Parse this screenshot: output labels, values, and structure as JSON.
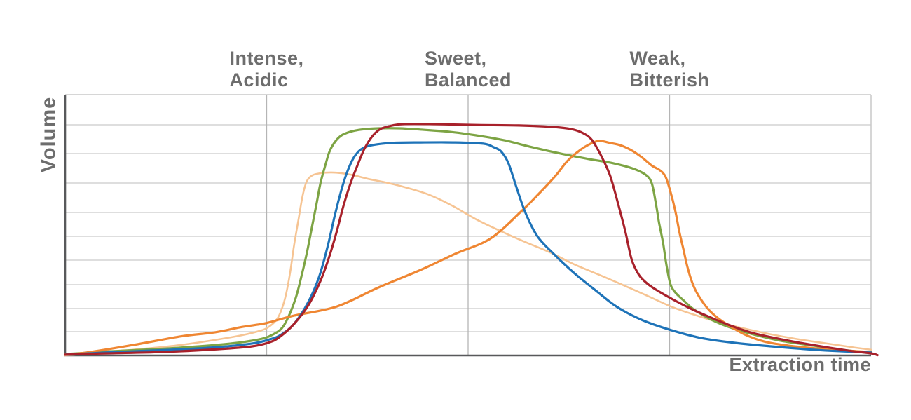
{
  "chart_data": {
    "type": "line",
    "title": "",
    "ylabel": "Volume",
    "xlabel": "Extraction time",
    "grid": "on",
    "legend": "none",
    "axis_ranges": {
      "x": [
        0,
        100
      ],
      "y": [
        0,
        100
      ]
    },
    "axis_note": "no numeric ticks shown; x = % of extraction time axis, y = % of volume axis height",
    "annotations": [
      {
        "line1": "Intense,",
        "line2": "Acidic",
        "x_percent": 25
      },
      {
        "line1": "Sweet,",
        "line2": "Balanced",
        "x_percent": 50
      },
      {
        "line1": "Weak,",
        "line2": "Bitterish",
        "x_percent": 75
      }
    ],
    "series": [
      {
        "name": "light-peach-curve",
        "color": "#f6c493",
        "width": 2.6,
        "points": [
          [
            0,
            0
          ],
          [
            5,
            1.3
          ],
          [
            13.7,
            3.8
          ],
          [
            20.6,
            7
          ],
          [
            24.1,
            9.4
          ],
          [
            25.4,
            11.3
          ],
          [
            26.3,
            14
          ],
          [
            26.9,
            18
          ],
          [
            27.4,
            23.4
          ],
          [
            27.9,
            31.5
          ],
          [
            28.4,
            42.2
          ],
          [
            29,
            53
          ],
          [
            29.5,
            61.8
          ],
          [
            30,
            66.9
          ],
          [
            30.7,
            69.1
          ],
          [
            31.7,
            69.9
          ],
          [
            33,
            70.2
          ],
          [
            34.3,
            69.9
          ],
          [
            35.8,
            69.1
          ],
          [
            37.6,
            67.7
          ],
          [
            39.7,
            66.4
          ],
          [
            42.2,
            64.5
          ],
          [
            45,
            61.8
          ],
          [
            48,
            57.5
          ],
          [
            51,
            52.2
          ],
          [
            54.1,
            47.6
          ],
          [
            57.1,
            43.5
          ],
          [
            60.2,
            39.5
          ],
          [
            63.2,
            34.9
          ],
          [
            66.3,
            30.9
          ],
          [
            69.3,
            26.9
          ],
          [
            72.3,
            22.8
          ],
          [
            75.4,
            18.5
          ],
          [
            78.4,
            15.3
          ],
          [
            81.5,
            12.4
          ],
          [
            84.5,
            10.2
          ],
          [
            87.6,
            8.1
          ],
          [
            91,
            6.2
          ],
          [
            94.5,
            4.6
          ],
          [
            97.6,
            3.2
          ],
          [
            100,
            2.2
          ]
        ]
      },
      {
        "name": "green-curve",
        "color": "#7da444",
        "width": 3.2,
        "points": [
          [
            0,
            0.5
          ],
          [
            5.8,
            1.6
          ],
          [
            12.8,
            2.7
          ],
          [
            19.7,
            4.3
          ],
          [
            24.1,
            6.2
          ],
          [
            25.8,
            8.1
          ],
          [
            26.9,
            10.5
          ],
          [
            27.7,
            14.8
          ],
          [
            28.6,
            22
          ],
          [
            29.3,
            30.1
          ],
          [
            30,
            39.5
          ],
          [
            30.6,
            48.9
          ],
          [
            31.2,
            58.3
          ],
          [
            31.7,
            66.4
          ],
          [
            32.3,
            73.1
          ],
          [
            32.8,
            78.2
          ],
          [
            33.5,
            82
          ],
          [
            34.3,
            84.4
          ],
          [
            35.4,
            85.8
          ],
          [
            36.7,
            86.6
          ],
          [
            38.9,
            87.1
          ],
          [
            41.5,
            87.1
          ],
          [
            44.1,
            86.6
          ],
          [
            47.6,
            85.8
          ],
          [
            51,
            84.4
          ],
          [
            54.5,
            82.5
          ],
          [
            58,
            79.8
          ],
          [
            61.5,
            77.4
          ],
          [
            65,
            75.3
          ],
          [
            68,
            73.7
          ],
          [
            70.6,
            71.5
          ],
          [
            72.1,
            69.1
          ],
          [
            72.8,
            65.9
          ],
          [
            73.3,
            58.3
          ],
          [
            73.7,
            50.8
          ],
          [
            74.2,
            43
          ],
          [
            74.6,
            34.9
          ],
          [
            75.1,
            27.4
          ],
          [
            75.7,
            24.2
          ],
          [
            76.7,
            21.2
          ],
          [
            78,
            17.7
          ],
          [
            80.2,
            13.7
          ],
          [
            82.3,
            11
          ],
          [
            85.4,
            8.1
          ],
          [
            88.9,
            5.6
          ],
          [
            92.8,
            3.8
          ],
          [
            97.1,
            1.9
          ],
          [
            100,
            1.1
          ]
        ]
      },
      {
        "name": "orange-curve",
        "color": "#ef8632",
        "width": 3.2,
        "points": [
          [
            0,
            0.3
          ],
          [
            2.6,
            1.1
          ],
          [
            8.4,
            4
          ],
          [
            14.3,
            7.3
          ],
          [
            18.6,
            8.9
          ],
          [
            21.7,
            10.8
          ],
          [
            23.8,
            11.8
          ],
          [
            25.2,
            12.6
          ],
          [
            28.4,
            15.3
          ],
          [
            33.7,
            18.8
          ],
          [
            38.9,
            26.1
          ],
          [
            44.1,
            32.8
          ],
          [
            48.4,
            39
          ],
          [
            52.8,
            44.9
          ],
          [
            56.7,
            55.6
          ],
          [
            58.9,
            62.4
          ],
          [
            60.9,
            69.1
          ],
          [
            62.3,
            74.5
          ],
          [
            63.9,
            78.8
          ],
          [
            65.2,
            81.2
          ],
          [
            66.3,
            82.3
          ],
          [
            67.6,
            81.5
          ],
          [
            68.9,
            80.6
          ],
          [
            70.2,
            78.8
          ],
          [
            71.5,
            76.1
          ],
          [
            72.8,
            72.8
          ],
          [
            73.8,
            71
          ],
          [
            74.5,
            68.5
          ],
          [
            75.1,
            62.9
          ],
          [
            75.7,
            55.6
          ],
          [
            76.2,
            47.6
          ],
          [
            76.7,
            40.9
          ],
          [
            77.2,
            34.1
          ],
          [
            77.8,
            28
          ],
          [
            78.5,
            23.4
          ],
          [
            79.6,
            18.5
          ],
          [
            80.8,
            14.8
          ],
          [
            82.3,
            11.6
          ],
          [
            84.3,
            8.1
          ],
          [
            86.7,
            5.4
          ],
          [
            89.7,
            3.8
          ],
          [
            93.2,
            2.7
          ],
          [
            96.7,
            1.9
          ],
          [
            100,
            1.3
          ]
        ]
      },
      {
        "name": "blue-curve",
        "color": "#1e73b8",
        "width": 3.2,
        "points": [
          [
            0,
            0.3
          ],
          [
            5,
            1.1
          ],
          [
            11,
            1.9
          ],
          [
            18,
            3
          ],
          [
            23.2,
            4.6
          ],
          [
            25.4,
            6.2
          ],
          [
            26.7,
            7.8
          ],
          [
            28.4,
            12.1
          ],
          [
            30.2,
            20.7
          ],
          [
            31.5,
            30.1
          ],
          [
            32.6,
            42.2
          ],
          [
            33.5,
            54.3
          ],
          [
            34.3,
            63.7
          ],
          [
            35,
            70.4
          ],
          [
            35.8,
            75.8
          ],
          [
            36.7,
            79
          ],
          [
            38,
            80.6
          ],
          [
            40.6,
            81.5
          ],
          [
            44.1,
            81.7
          ],
          [
            48.4,
            81.7
          ],
          [
            51.9,
            81.2
          ],
          [
            53.2,
            79.8
          ],
          [
            54.1,
            78.2
          ],
          [
            55,
            73.7
          ],
          [
            56,
            64.5
          ],
          [
            57.1,
            54.8
          ],
          [
            58.6,
            45.7
          ],
          [
            60.6,
            39
          ],
          [
            63.2,
            31.5
          ],
          [
            65.8,
            25
          ],
          [
            68.4,
            18.8
          ],
          [
            71.5,
            13.7
          ],
          [
            75,
            9.9
          ],
          [
            78.9,
            6.7
          ],
          [
            83.2,
            4.8
          ],
          [
            87.6,
            3.5
          ],
          [
            92.8,
            2.2
          ],
          [
            96.3,
            1.6
          ],
          [
            100,
            1.1
          ]
        ]
      },
      {
        "name": "red-curve",
        "color": "#a8212b",
        "width": 3.2,
        "points": [
          [
            0,
            0.3
          ],
          [
            5,
            0.8
          ],
          [
            11.9,
            1.3
          ],
          [
            18.9,
            2.4
          ],
          [
            23.2,
            3.5
          ],
          [
            25.4,
            5.1
          ],
          [
            26.7,
            7.3
          ],
          [
            28.4,
            12.1
          ],
          [
            30.2,
            19.4
          ],
          [
            31.7,
            28.8
          ],
          [
            32.8,
            38.2
          ],
          [
            33.7,
            47.6
          ],
          [
            34.5,
            57
          ],
          [
            35.4,
            65.9
          ],
          [
            36.3,
            73.1
          ],
          [
            37.1,
            79
          ],
          [
            38,
            83.6
          ],
          [
            39,
            86.6
          ],
          [
            40.2,
            87.9
          ],
          [
            41.9,
            88.7
          ],
          [
            45.8,
            88.7
          ],
          [
            51,
            88.4
          ],
          [
            56.3,
            88.2
          ],
          [
            60.6,
            87.6
          ],
          [
            62.8,
            86.8
          ],
          [
            64.3,
            85.2
          ],
          [
            65.4,
            82.5
          ],
          [
            66.5,
            76.6
          ],
          [
            67.6,
            69.1
          ],
          [
            68.6,
            58.3
          ],
          [
            69.5,
            47.6
          ],
          [
            70.3,
            36.8
          ],
          [
            71.2,
            30.9
          ],
          [
            72.3,
            27.4
          ],
          [
            73.7,
            24.5
          ],
          [
            75.4,
            21.5
          ],
          [
            77.6,
            18
          ],
          [
            79.7,
            15.1
          ],
          [
            82.3,
            11.8
          ],
          [
            85,
            8.9
          ],
          [
            88.4,
            6.5
          ],
          [
            92.8,
            4
          ],
          [
            97.1,
            1.9
          ],
          [
            100,
            0.8
          ],
          [
            100.8,
            0.1
          ]
        ]
      }
    ]
  }
}
